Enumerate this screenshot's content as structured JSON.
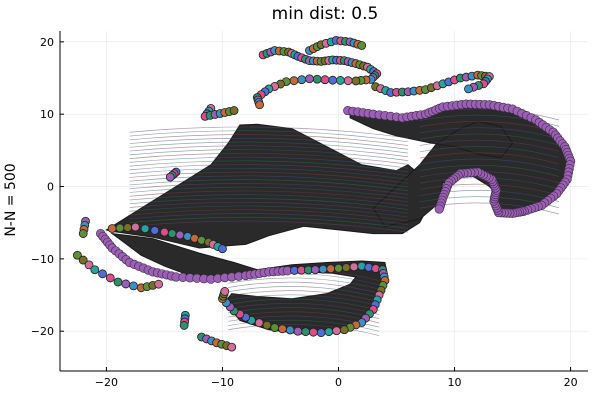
{
  "chart_data": {
    "type": "scatter",
    "title": "min dist: 0.5",
    "xlabel": "",
    "ylabel": "N-N = 500",
    "xlim": [
      -24,
      21.5
    ],
    "ylim": [
      -25.5,
      21.5
    ],
    "xticks": [
      -20,
      -10,
      0,
      10,
      20
    ],
    "yticks": [
      -20,
      -10,
      0,
      10,
      20
    ],
    "xtick_labels": [
      "−20",
      "−10",
      "0",
      "10",
      "20"
    ],
    "ytick_labels": [
      "−20",
      "−10",
      "0",
      "10",
      "20"
    ],
    "grid": true,
    "legend": "none",
    "palette": [
      "#4f6ed8",
      "#d84f8a",
      "#2f8f6e",
      "#9a5fb8",
      "#3f8fc0",
      "#c46a3a",
      "#5f8f3a",
      "#7a6f2a",
      "#d06f9a",
      "#2aa39f"
    ],
    "outline_color": "#1f1f1f",
    "ribbon_color": "#2a2a2a",
    "ribbon_line_colors": [
      "#6a3f7a",
      "#2f6f4f",
      "#3f4f8a",
      "#7a3f3f",
      "#2f5f6f"
    ],
    "rim_color": "#9b5fb5",
    "strands": [
      {
        "name": "",
        "points": [
          [
            -14.0,
            2.0
          ],
          [
            -14.5,
            1.3
          ]
        ]
      },
      {
        "name": "",
        "points": [
          [
            -21.8,
            -4.8
          ],
          [
            -22.0,
            -6.5
          ]
        ]
      },
      {
        "name": "",
        "points": [
          [
            -22.5,
            -9.5
          ],
          [
            -21.0,
            -11.5
          ],
          [
            -19.0,
            -13.2
          ],
          [
            -17.0,
            -14.0
          ],
          [
            -15.5,
            -13.5
          ]
        ]
      },
      {
        "name": "",
        "points": [
          [
            -13.2,
            -17.8
          ],
          [
            -13.3,
            -19.2
          ]
        ]
      },
      {
        "name": "",
        "points": [
          [
            -11.8,
            -20.8
          ],
          [
            -10.5,
            -21.6
          ],
          [
            -9.2,
            -22.2
          ]
        ]
      },
      {
        "name": "",
        "points": [
          [
            -19.5,
            -5.8
          ],
          [
            -17.5,
            -5.6
          ],
          [
            -15.0,
            -6.3
          ],
          [
            -13.0,
            -6.9
          ],
          [
            -11.2,
            -7.7
          ],
          [
            -10.0,
            -8.6
          ]
        ]
      },
      {
        "name": "",
        "points": [
          [
            -11.0,
            10.8
          ],
          [
            -11.5,
            9.7
          ],
          [
            -10.2,
            10.1
          ],
          [
            -9.0,
            10.5
          ]
        ]
      },
      {
        "name": "",
        "points": [
          [
            -6.5,
            18.2
          ],
          [
            -5.5,
            18.8
          ],
          [
            -4.3,
            18.6
          ],
          [
            -3.5,
            18.0
          ],
          [
            -2.5,
            17.4
          ],
          [
            -1.5,
            17.3
          ],
          [
            -0.5,
            17.5
          ],
          [
            0.5,
            17.4
          ],
          [
            1.5,
            17.0
          ],
          [
            2.5,
            16.5
          ],
          [
            3.3,
            15.6
          ],
          [
            2.8,
            14.8
          ],
          [
            1.5,
            14.6
          ],
          [
            -0.5,
            14.7
          ],
          [
            -2.5,
            14.9
          ],
          [
            -4.5,
            14.5
          ],
          [
            -6.0,
            13.5
          ],
          [
            -7.0,
            12.3
          ],
          [
            -6.8,
            11.3
          ]
        ]
      },
      {
        "name": "",
        "points": [
          [
            -2.5,
            18.8
          ],
          [
            -1.5,
            19.6
          ],
          [
            -0.2,
            20.2
          ],
          [
            1.0,
            20.0
          ],
          [
            2.0,
            19.5
          ]
        ]
      },
      {
        "name": "",
        "points": [
          [
            3.2,
            13.8
          ],
          [
            4.5,
            13.0
          ],
          [
            6.0,
            13.1
          ],
          [
            7.5,
            13.4
          ],
          [
            9.0,
            14.2
          ],
          [
            10.5,
            15.0
          ],
          [
            12.0,
            15.4
          ],
          [
            13.0,
            15.2
          ],
          [
            12.5,
            14.2
          ],
          [
            11.2,
            13.5
          ]
        ]
      },
      {
        "name": "",
        "points": [
          [
            -3.8,
            -11.6
          ],
          [
            -2.0,
            -11.5
          ],
          [
            0.0,
            -11.3
          ],
          [
            2.0,
            -11.0
          ],
          [
            3.8,
            -11.5
          ],
          [
            4.0,
            -13.0
          ],
          [
            3.5,
            -15.0
          ],
          [
            3.0,
            -17.0
          ],
          [
            2.0,
            -18.8
          ],
          [
            0.5,
            -19.8
          ],
          [
            -1.5,
            -20.2
          ],
          [
            -3.5,
            -20.0
          ],
          [
            -5.5,
            -19.5
          ],
          [
            -7.5,
            -18.5
          ],
          [
            -9.0,
            -17.2
          ],
          [
            -10.0,
            -15.5
          ],
          [
            -9.8,
            -14.5
          ]
        ]
      }
    ]
  }
}
